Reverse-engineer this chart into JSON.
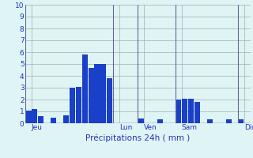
{
  "bar_values": [
    1.1,
    1.2,
    0.6,
    0,
    0.5,
    0,
    0.7,
    3.0,
    3.1,
    5.8,
    4.7,
    5.0,
    5.0,
    3.8,
    0,
    0,
    0,
    0,
    0.4,
    0,
    0,
    0.35,
    0,
    0,
    2.0,
    2.1,
    2.1,
    1.8,
    0,
    0.35,
    0,
    0,
    0.35,
    0,
    0.35,
    0
  ],
  "num_bars": 36,
  "day_labels": [
    "Jeu",
    "Lun",
    "Ven",
    "Sam",
    "Dim"
  ],
  "day_tick_positions": [
    0.5,
    14.5,
    18.5,
    24.5,
    34.5
  ],
  "day_vline_positions": [
    0,
    14,
    18,
    24,
    34
  ],
  "xlabel": "Précipitations 24h ( mm )",
  "ylim": [
    0,
    10
  ],
  "yticks": [
    0,
    1,
    2,
    3,
    4,
    5,
    6,
    7,
    8,
    9,
    10
  ],
  "bar_color": "#1a3fc8",
  "bg_color": "#dff5f5",
  "grid_color": "#aaaaaa",
  "label_color": "#2233bb",
  "xlabel_color": "#2233bb",
  "fig_bg": "#dff5f5",
  "vline_color": "#666699",
  "bottom_line_color": "#3344aa"
}
